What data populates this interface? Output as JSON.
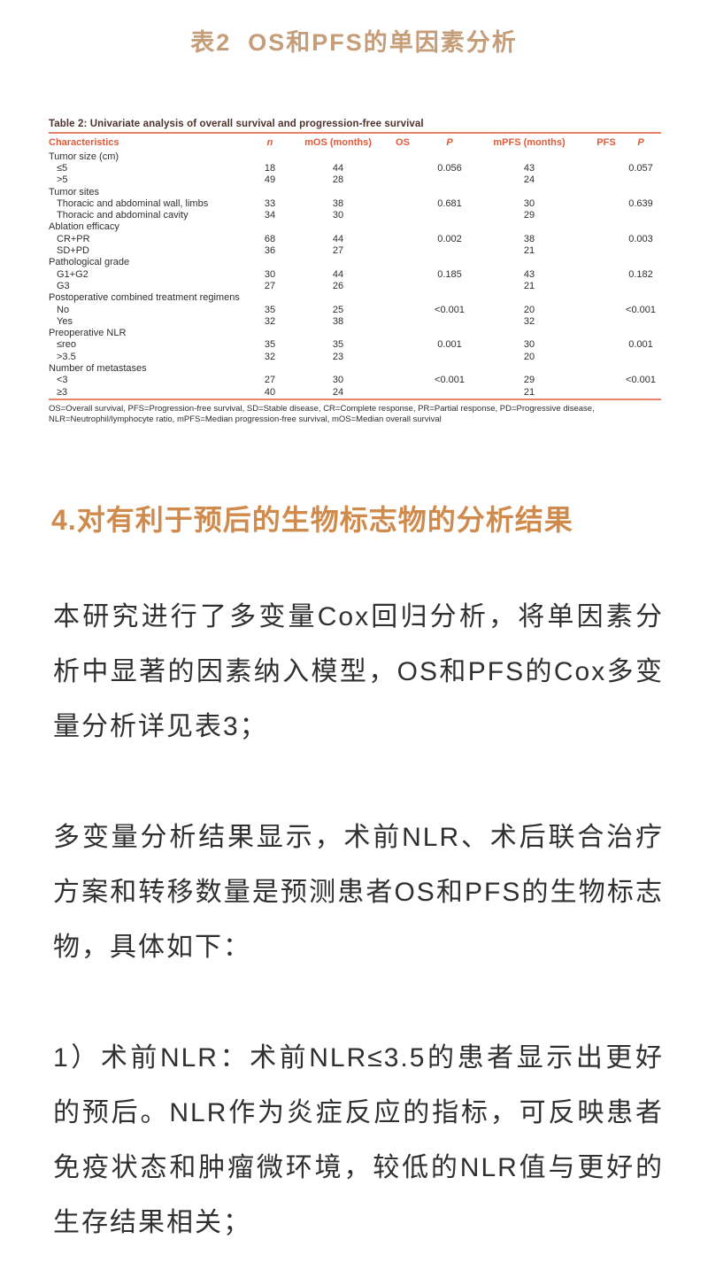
{
  "page": {
    "title": "表2  OS和PFS的单因素分析"
  },
  "table": {
    "caption": "Table 2: Univariate analysis of overall survival and progression-free survival",
    "columns": [
      "Characteristics",
      "n",
      "mOS (months)",
      "OS",
      "P",
      "mPFS (months)",
      "PFS",
      "P"
    ],
    "groups": [
      {
        "label": "Tumor size (cm)",
        "rows": [
          {
            "characteristic": "≤5",
            "n": "18",
            "mos": "44",
            "os": "",
            "p_os": "0.056",
            "mpfs": "43",
            "pfs": "",
            "p_pfs": "0.057"
          },
          {
            "characteristic": ">5",
            "n": "49",
            "mos": "28",
            "os": "",
            "p_os": "",
            "mpfs": "24",
            "pfs": "",
            "p_pfs": ""
          }
        ]
      },
      {
        "label": "Tumor sites",
        "rows": [
          {
            "characteristic": "Thoracic and abdominal wall, limbs",
            "n": "33",
            "mos": "38",
            "os": "",
            "p_os": "0.681",
            "mpfs": "30",
            "pfs": "",
            "p_pfs": "0.639"
          },
          {
            "characteristic": "Thoracic and abdominal cavity",
            "n": "34",
            "mos": "30",
            "os": "",
            "p_os": "",
            "mpfs": "29",
            "pfs": "",
            "p_pfs": ""
          }
        ]
      },
      {
        "label": "Ablation efficacy",
        "rows": [
          {
            "characteristic": "CR+PR",
            "n": "68",
            "mos": "44",
            "os": "",
            "p_os": "0.002",
            "mpfs": "38",
            "pfs": "",
            "p_pfs": "0.003"
          },
          {
            "characteristic": "SD+PD",
            "n": "36",
            "mos": "27",
            "os": "",
            "p_os": "",
            "mpfs": "21",
            "pfs": "",
            "p_pfs": ""
          }
        ]
      },
      {
        "label": "Pathological grade",
        "rows": [
          {
            "characteristic": "G1+G2",
            "n": "30",
            "mos": "44",
            "os": "",
            "p_os": "0.185",
            "mpfs": "43",
            "pfs": "",
            "p_pfs": "0.182"
          },
          {
            "characteristic": "G3",
            "n": "27",
            "mos": "26",
            "os": "",
            "p_os": "",
            "mpfs": "21",
            "pfs": "",
            "p_pfs": ""
          }
        ]
      },
      {
        "label": "Postoperative combined treatment regimens",
        "rows": [
          {
            "characteristic": "No",
            "n": "35",
            "mos": "25",
            "os": "",
            "p_os": "<0.001",
            "mpfs": "20",
            "pfs": "",
            "p_pfs": "<0.001"
          },
          {
            "characteristic": "Yes",
            "n": "32",
            "mos": "38",
            "os": "",
            "p_os": "",
            "mpfs": "32",
            "pfs": "",
            "p_pfs": ""
          }
        ]
      },
      {
        "label": "Preoperative NLR",
        "rows": [
          {
            "characteristic": "≤reo",
            "n": "35",
            "mos": "35",
            "os": "",
            "p_os": "0.001",
            "mpfs": "30",
            "pfs": "",
            "p_pfs": "0.001"
          },
          {
            "characteristic": ">3.5",
            "n": "32",
            "mos": "23",
            "os": "",
            "p_os": "",
            "mpfs": "20",
            "pfs": "",
            "p_pfs": ""
          }
        ]
      },
      {
        "label": "Number of metastases",
        "rows": [
          {
            "characteristic": "<3",
            "n": "27",
            "mos": "30",
            "os": "",
            "p_os": "<0.001",
            "mpfs": "29",
            "pfs": "",
            "p_pfs": "<0.001"
          },
          {
            "characteristic": "≥3",
            "n": "40",
            "mos": "24",
            "os": "",
            "p_os": "",
            "mpfs": "21",
            "pfs": "",
            "p_pfs": ""
          }
        ]
      }
    ],
    "footnote": [
      "OS=Overall survival, PFS=Progression-free survival, SD=Stable disease, CR=Complete response, PR=Partial response, PD=Progressive disease,",
      "NLR=Neutrophil/lymphocyte ratio, mPFS=Median progression-free survival, mOS=Median overall survival"
    ]
  },
  "section": {
    "heading": "4.对有利于预后的生物标志物的分析结果",
    "paragraphs": [
      "本研究进行了多变量Cox回归分析，将单因素分析中显著的因素纳入模型，OS和PFS的Cox多变量分析详见表3；",
      "多变量分析结果显示，术前NLR、术后联合治疗方案和转移数量是预测患者OS和PFS的生物标志物，具体如下：",
      "1）术前NLR：术前NLR≤3.5的患者显示出更好的预后。NLR作为炎症反应的指标，可反映患者免疫状态和肿瘤微环境，较低的NLR值与更好的生存结果相关；"
    ]
  },
  "colors": {
    "page_title": "#c59d78",
    "section_heading": "#cf8a4c",
    "table_caption": "#4e342a",
    "table_header": "#e05a3a",
    "table_rule": "#e8836a",
    "body_text": "#2e2e2e",
    "paragraph_text": "#303030"
  }
}
